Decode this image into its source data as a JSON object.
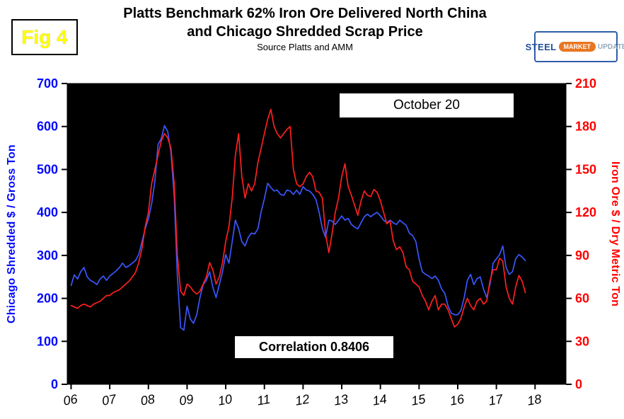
{
  "fig_label": "Fig 4",
  "title": {
    "line1": "Platts Benchmark 62% Iron Ore Delivered North China",
    "line2": "and Chicago Shredded Scrap Price",
    "source": "Source Platts and AMM"
  },
  "logo": {
    "steel": "STEEL",
    "market": "MARKET",
    "update": "UPDATE"
  },
  "annotations": {
    "date_label": "October 20",
    "correlation_label": "Correlation 0.8406"
  },
  "chart_data": {
    "type": "line",
    "title": "Platts Benchmark 62% Iron Ore Delivered North China and Chicago Shredded Scrap Price",
    "plot_bg": "#000000",
    "left_axis": {
      "label": "Chicago Shredded $ / Gross Ton",
      "min": 0,
      "max": 700,
      "ticks": [
        0,
        100,
        200,
        300,
        400,
        500,
        600,
        700
      ],
      "color": "#0008ff"
    },
    "right_axis": {
      "label": "Iron Ore $ / Dry Metric Ton",
      "min": 0,
      "max": 210,
      "ticks": [
        0,
        30,
        60,
        90,
        120,
        150,
        180,
        210
      ],
      "color": "#ff0000"
    },
    "x_axis": {
      "min": 2005.9,
      "max": 2018.8,
      "tick_values": [
        2006,
        2007,
        2008,
        2009,
        2010,
        2011,
        2012,
        2013,
        2014,
        2015,
        2016,
        2017,
        2018
      ],
      "tick_labels": [
        "06",
        "07",
        "08",
        "09",
        "10",
        "11",
        "12",
        "13",
        "14",
        "15",
        "16",
        "17",
        "18"
      ]
    },
    "series": [
      {
        "name": "Chicago Shredded Scrap Price",
        "axis": "left",
        "color": "#3a57ff",
        "start_year": 2006,
        "interval_years": 0.08333,
        "values": [
          230,
          255,
          245,
          262,
          272,
          250,
          242,
          238,
          232,
          245,
          252,
          242,
          252,
          258,
          264,
          272,
          282,
          272,
          276,
          282,
          288,
          302,
          332,
          362,
          385,
          420,
          472,
          558,
          572,
          602,
          588,
          540,
          438,
          252,
          132,
          126,
          182,
          152,
          142,
          162,
          202,
          232,
          242,
          262,
          226,
          202,
          232,
          262,
          302,
          282,
          332,
          382,
          362,
          332,
          322,
          342,
          352,
          350,
          362,
          402,
          432,
          468,
          458,
          450,
          452,
          442,
          440,
          452,
          450,
          442,
          452,
          442,
          460,
          452,
          450,
          442,
          430,
          400,
          362,
          342,
          382,
          380,
          372,
          382,
          392,
          382,
          386,
          372,
          366,
          362,
          376,
          390,
          396,
          390,
          396,
          400,
          392,
          382,
          376,
          382,
          376,
          372,
          382,
          376,
          370,
          352,
          346,
          332,
          292,
          262,
          256,
          252,
          246,
          252,
          242,
          222,
          212,
          182,
          166,
          162,
          162,
          172,
          202,
          242,
          256,
          232,
          246,
          250,
          222,
          202,
          232,
          282,
          292,
          302,
          322,
          272,
          256,
          262,
          292,
          302,
          296,
          288
        ]
      },
      {
        "name": "Platts Benchmark 62% Iron Ore",
        "axis": "right",
        "color": "#ff1f1f",
        "start_year": 2006,
        "interval_years": 0.08333,
        "values": [
          55,
          54,
          53,
          55,
          56,
          55,
          54,
          56,
          57,
          58,
          60,
          62,
          62,
          64,
          65,
          66,
          68,
          70,
          72,
          75,
          78,
          85,
          95,
          110,
          120,
          140,
          150,
          160,
          170,
          175,
          172,
          165,
          140,
          90,
          65,
          62,
          70,
          68,
          65,
          63,
          65,
          70,
          75,
          85,
          80,
          70,
          75,
          85,
          100,
          110,
          130,
          160,
          175,
          145,
          130,
          140,
          135,
          140,
          155,
          165,
          175,
          185,
          192,
          180,
          175,
          172,
          175,
          178,
          180,
          150,
          140,
          138,
          140,
          145,
          148,
          145,
          135,
          134,
          130,
          105,
          92,
          105,
          120,
          130,
          145,
          154,
          138,
          132,
          125,
          118,
          128,
          135,
          132,
          131,
          136,
          134,
          128,
          120,
          112,
          114,
          100,
          94,
          96,
          92,
          82,
          80,
          72,
          70,
          68,
          62,
          58,
          52,
          58,
          62,
          52,
          56,
          56,
          52,
          46,
          40,
          42,
          46,
          54,
          60,
          55,
          52,
          58,
          60,
          56,
          58,
          72,
          80,
          80,
          88,
          86,
          68,
          60,
          56,
          68,
          76,
          72,
          64
        ]
      }
    ]
  }
}
